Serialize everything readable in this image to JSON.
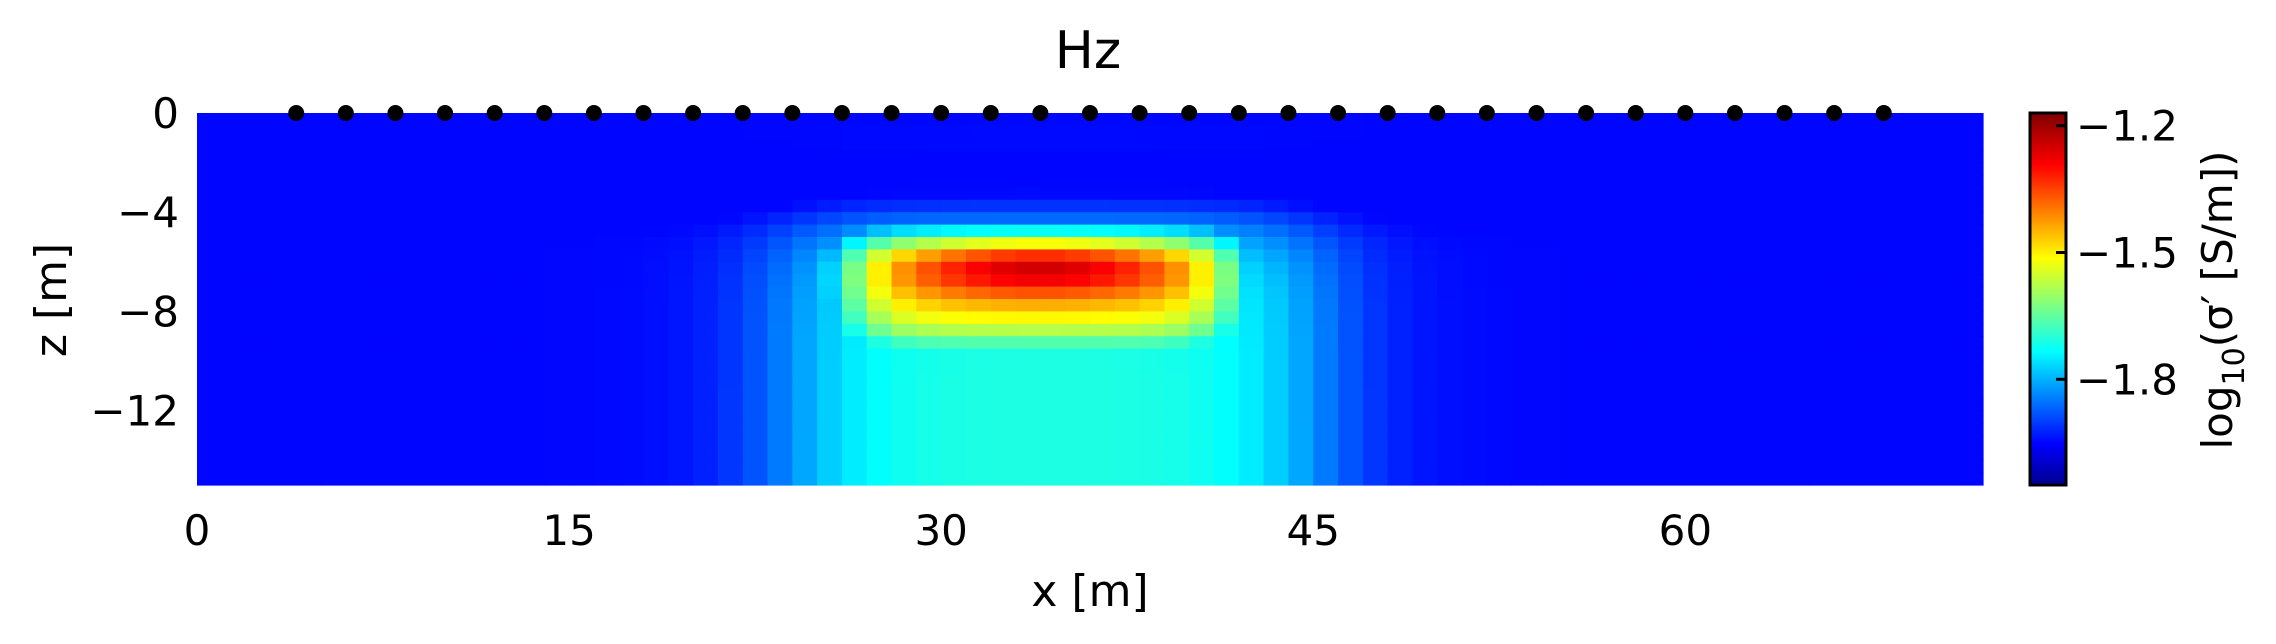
{
  "chart_data": {
    "type": "heatmap",
    "title": "Hz",
    "xlabel": "x [m]",
    "ylabel": "z [m]",
    "xlim": [
      0,
      72
    ],
    "ylim": [
      -15,
      0
    ],
    "xticks": [
      0,
      15,
      30,
      45,
      60
    ],
    "xtick_labels": [
      "0",
      "15",
      "30",
      "45",
      "60"
    ],
    "yticks": [
      0,
      -4,
      -8,
      -12
    ],
    "ytick_labels": [
      "0",
      "−4",
      "−8",
      "−12"
    ],
    "colorbar": {
      "label_main": "log",
      "label_sub": "10",
      "label_rest": "(σ′ [S/m])",
      "range": [
        -2.05,
        -1.17
      ],
      "ticks": [
        -1.2,
        -1.5,
        -1.8
      ],
      "tick_labels": [
        "−1.2",
        "−1.5",
        "−1.8"
      ],
      "colormap": "jet"
    },
    "background_value": -1.95,
    "anomaly": {
      "x_range": [
        26,
        42
      ],
      "z_range": [
        -9.5,
        -5
      ],
      "peak_value": -1.17,
      "plume_value": -1.65,
      "plume_x_range": [
        24,
        45
      ]
    },
    "receivers": {
      "marker_color": "#000000",
      "x": [
        4,
        6,
        8,
        10,
        12,
        14,
        16,
        18,
        20,
        22,
        24,
        26,
        28,
        30,
        32,
        34,
        36,
        38,
        40,
        42,
        44,
        46,
        48,
        50,
        52,
        54,
        56,
        58,
        60,
        62,
        64,
        66,
        68
      ],
      "z": 0
    }
  }
}
